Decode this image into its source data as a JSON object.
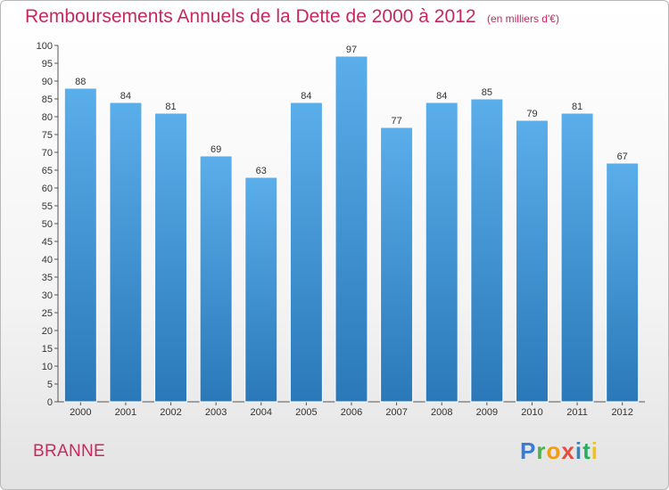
{
  "header": {
    "title": "Remboursements Annuels de la Dette de 2000 à 2012",
    "subtitle": "(en milliers d'€)"
  },
  "footer": {
    "town": "BRANNE",
    "logo_text": "Proxiti"
  },
  "colors": {
    "title": "#c8285e",
    "bar_top": "#5aaeea",
    "bar_bottom": "#2a78b8"
  },
  "chart_data": {
    "type": "bar",
    "categories": [
      "2000",
      "2001",
      "2002",
      "2003",
      "2004",
      "2005",
      "2006",
      "2007",
      "2008",
      "2009",
      "2010",
      "2011",
      "2012"
    ],
    "values": [
      88,
      84,
      81,
      69,
      63,
      84,
      97,
      77,
      84,
      85,
      79,
      81,
      67
    ],
    "title": "Remboursements Annuels de la Dette de 2000 à 2012",
    "subtitle": "(en milliers d'€)",
    "xlabel": "",
    "ylabel": "",
    "ylim": [
      0,
      100
    ],
    "yticks": [
      0,
      5,
      10,
      15,
      20,
      25,
      30,
      35,
      40,
      45,
      50,
      55,
      60,
      65,
      70,
      75,
      80,
      85,
      90,
      95,
      100
    ],
    "grid": false,
    "legend": "none"
  }
}
